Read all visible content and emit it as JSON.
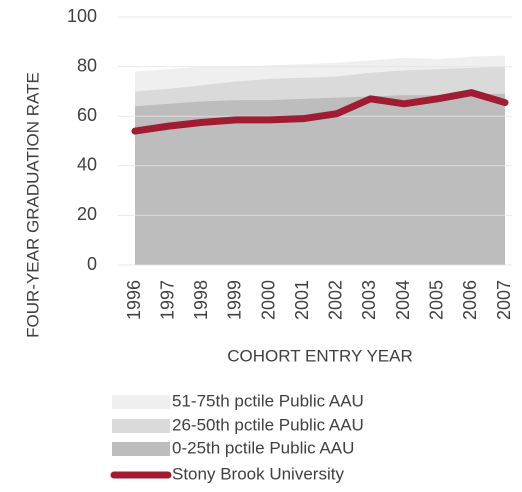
{
  "chart_data": {
    "type": "area-line",
    "x_label": "COHORT ENTRY YEAR",
    "y_label": "FOUR-YEAR GRADUATION RATE",
    "categories": [
      "1996",
      "1997",
      "1998",
      "1999",
      "2000",
      "2001",
      "2002",
      "2003",
      "2004",
      "2005",
      "2006",
      "2007"
    ],
    "series": [
      {
        "name": "51-75th pctile Public AAU",
        "kind": "area",
        "color": "#efefef",
        "values": [
          78,
          79,
          80,
          80,
          80.5,
          81,
          81.5,
          82.5,
          83.5,
          83,
          84,
          84.5
        ]
      },
      {
        "name": "26-50th pctile Public AAU",
        "kind": "area",
        "color": "#dadada",
        "values": [
          70,
          71,
          72.5,
          74,
          75,
          75.5,
          76,
          77.5,
          78.5,
          79,
          79.5,
          80
        ]
      },
      {
        "name": "0-25th pctile Public AAU",
        "kind": "area",
        "color": "#bdbdbd",
        "values": [
          64,
          65,
          66,
          66.5,
          66.5,
          67,
          67.5,
          68,
          68.5,
          68.5,
          69,
          69
        ]
      },
      {
        "name": "Stony Brook University",
        "kind": "line",
        "color": "#a01c32",
        "values": [
          54,
          56,
          57.5,
          58.5,
          58.5,
          59,
          61,
          67,
          65,
          67,
          69.5,
          65.5
        ]
      }
    ],
    "ylim": [
      0,
      100
    ],
    "yticks": [
      0,
      20,
      40,
      60,
      80,
      100
    ],
    "grid": true
  }
}
